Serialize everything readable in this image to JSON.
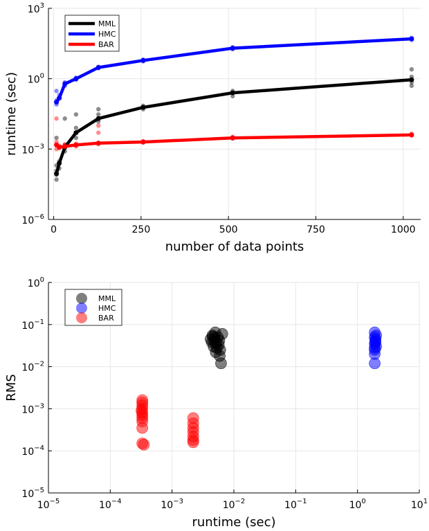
{
  "chart_data": [
    {
      "type": "line",
      "xlabel": "number of data points",
      "ylabel": "runtime (sec)",
      "yscale": "log",
      "xlim": [
        -15,
        1050
      ],
      "ylim": [
        1e-06,
        1000
      ],
      "xticks": [
        0,
        250,
        500,
        750,
        1000
      ],
      "xtick_labels": [
        "0",
        "250",
        "500",
        "750",
        "1000"
      ],
      "yticks": [
        {
          "value": 1e-06,
          "base": "10",
          "exp": "−6"
        },
        {
          "value": 0.001,
          "base": "10",
          "exp": "−3"
        },
        {
          "value": 1,
          "base": "10",
          "exp": "0"
        },
        {
          "value": 1000,
          "base": "10",
          "exp": "3"
        }
      ],
      "grid": true,
      "legend_position": "top-left",
      "x": [
        8,
        16,
        32,
        64,
        128,
        256,
        512,
        1024
      ],
      "series": [
        {
          "name": "MML",
          "color": "#000000",
          "values": [
            9e-05,
            0.00025,
            0.0012,
            0.005,
            0.02,
            0.06,
            0.25,
            0.9
          ],
          "scatter": [
            [
              8,
              5e-05
            ],
            [
              8,
              8e-05
            ],
            [
              8,
              0.00012
            ],
            [
              8,
              0.0002
            ],
            [
              8,
              0.003
            ],
            [
              16,
              0.00015
            ],
            [
              16,
              0.0003
            ],
            [
              16,
              0.0012
            ],
            [
              32,
              0.0008
            ],
            [
              32,
              0.0015
            ],
            [
              32,
              0.02
            ],
            [
              64,
              0.003
            ],
            [
              64,
              0.008
            ],
            [
              64,
              0.03
            ],
            [
              128,
              0.015
            ],
            [
              128,
              0.03
            ],
            [
              128,
              0.05
            ],
            [
              256,
              0.05
            ],
            [
              256,
              0.07
            ],
            [
              512,
              0.18
            ],
            [
              512,
              0.3
            ],
            [
              1024,
              0.5
            ],
            [
              1024,
              0.7
            ],
            [
              1024,
              1.2
            ],
            [
              1024,
              2.5
            ]
          ]
        },
        {
          "name": "HMC",
          "color": "#0000ff",
          "values": [
            0.1,
            0.15,
            0.6,
            1.0,
            3.0,
            6.0,
            20.0,
            50.0
          ],
          "scatter": [
            [
              8,
              0.08
            ],
            [
              8,
              0.12
            ],
            [
              8,
              0.3
            ],
            [
              16,
              0.15
            ],
            [
              16,
              0.2
            ],
            [
              32,
              0.5
            ],
            [
              32,
              0.7
            ],
            [
              64,
              0.9
            ],
            [
              64,
              1.1
            ],
            [
              128,
              2.8
            ],
            [
              128,
              3.2
            ],
            [
              256,
              5.5
            ],
            [
              256,
              6.5
            ],
            [
              512,
              18
            ],
            [
              512,
              22
            ],
            [
              1024,
              45
            ],
            [
              1024,
              55
            ]
          ]
        },
        {
          "name": "BAR",
          "color": "#ff0000",
          "values": [
            0.0015,
            0.0012,
            0.0013,
            0.0015,
            0.0018,
            0.002,
            0.003,
            0.004
          ],
          "scatter": [
            [
              8,
              0.001
            ],
            [
              8,
              0.0015
            ],
            [
              8,
              0.002
            ],
            [
              8,
              0.02
            ],
            [
              16,
              0.0011
            ],
            [
              16,
              0.0014
            ],
            [
              32,
              0.0012
            ],
            [
              32,
              0.0016
            ],
            [
              64,
              0.0013
            ],
            [
              64,
              0.0017
            ],
            [
              128,
              0.0016
            ],
            [
              128,
              0.005
            ],
            [
              128,
              0.01
            ],
            [
              256,
              0.0019
            ],
            [
              256,
              0.0022
            ],
            [
              512,
              0.0028
            ],
            [
              512,
              0.0033
            ],
            [
              1024,
              0.0038
            ],
            [
              1024,
              0.0045
            ]
          ]
        }
      ]
    },
    {
      "type": "scatter",
      "xlabel": "runtime (sec)",
      "ylabel": "RMS",
      "xscale": "log",
      "yscale": "log",
      "xlim": [
        1e-05,
        10
      ],
      "ylim": [
        1e-05,
        1
      ],
      "xticks": [
        {
          "value": 1e-05,
          "base": "10",
          "exp": "−5"
        },
        {
          "value": 0.0001,
          "base": "10",
          "exp": "−4"
        },
        {
          "value": 0.001,
          "base": "10",
          "exp": "−3"
        },
        {
          "value": 0.01,
          "base": "10",
          "exp": "−2"
        },
        {
          "value": 0.1,
          "base": "10",
          "exp": "−1"
        },
        {
          "value": 1,
          "base": "10",
          "exp": "0"
        },
        {
          "value": 10,
          "base": "10",
          "exp": "1"
        }
      ],
      "yticks": [
        {
          "value": 1e-05,
          "base": "10",
          "exp": "−5"
        },
        {
          "value": 0.0001,
          "base": "10",
          "exp": "−4"
        },
        {
          "value": 0.001,
          "base": "10",
          "exp": "−3"
        },
        {
          "value": 0.01,
          "base": "10",
          "exp": "−2"
        },
        {
          "value": 0.1,
          "base": "10",
          "exp": "−1"
        },
        {
          "value": 1,
          "base": "10",
          "exp": "0"
        }
      ],
      "grid": true,
      "legend_position": "top-left",
      "series": [
        {
          "name": "MML",
          "color": "#000000",
          "points": [
            [
              0.0042,
              0.045
            ],
            [
              0.0045,
              0.055
            ],
            [
              0.0048,
              0.04
            ],
            [
              0.005,
              0.065
            ],
            [
              0.0052,
              0.035
            ],
            [
              0.0055,
              0.05
            ],
            [
              0.0047,
              0.03
            ],
            [
              0.0058,
              0.042
            ],
            [
              0.006,
              0.025
            ],
            [
              0.0062,
              0.012
            ],
            [
              0.0065,
              0.06
            ],
            [
              0.0044,
              0.038
            ],
            [
              0.0053,
              0.028
            ],
            [
              0.0057,
              0.033
            ],
            [
              0.0049,
              0.048
            ],
            [
              0.0051,
              0.022
            ],
            [
              0.0046,
              0.052
            ],
            [
              0.0059,
              0.018
            ]
          ]
        },
        {
          "name": "HMC",
          "color": "#0000ff",
          "points": [
            [
              1.9,
              0.065
            ],
            [
              1.9,
              0.05
            ],
            [
              1.95,
              0.04
            ],
            [
              1.9,
              0.035
            ],
            [
              2.0,
              0.03
            ],
            [
              1.9,
              0.025
            ],
            [
              1.95,
              0.045
            ],
            [
              1.9,
              0.02
            ],
            [
              1.9,
              0.012
            ],
            [
              2.0,
              0.055
            ],
            [
              1.9,
              0.028
            ],
            [
              1.95,
              0.038
            ]
          ]
        },
        {
          "name": "BAR",
          "color": "#ff0000",
          "points": [
            [
              0.00033,
              0.0016
            ],
            [
              0.00033,
              0.0014
            ],
            [
              0.00033,
              0.0012
            ],
            [
              0.00033,
              0.001
            ],
            [
              0.00033,
              0.0008
            ],
            [
              0.00033,
              0.0007
            ],
            [
              0.00033,
              0.0006
            ],
            [
              0.00033,
              0.0005
            ],
            [
              0.00033,
              0.00035
            ],
            [
              0.00033,
              0.00015
            ],
            [
              0.00035,
              0.00014
            ],
            [
              0.00032,
              0.0009
            ],
            [
              0.0022,
              0.0006
            ],
            [
              0.0022,
              0.00045
            ],
            [
              0.0022,
              0.00035
            ],
            [
              0.0022,
              0.00028
            ],
            [
              0.0022,
              0.00022
            ],
            [
              0.0022,
              0.00018
            ],
            [
              0.0022,
              0.00016
            ]
          ]
        }
      ]
    }
  ]
}
